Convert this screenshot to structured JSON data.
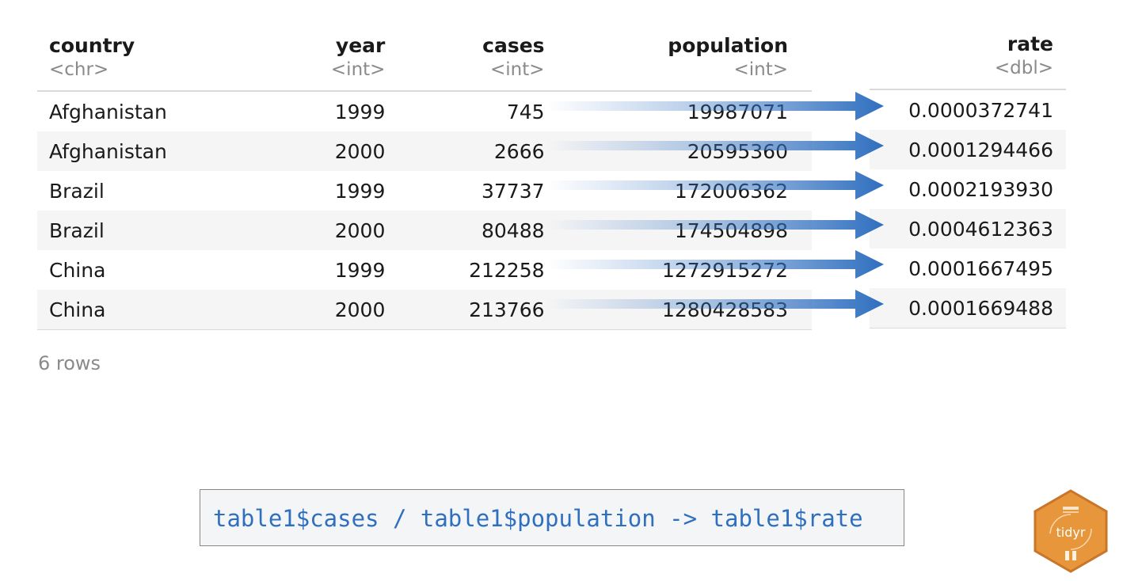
{
  "table": {
    "columns": [
      {
        "name": "country",
        "type": "<chr>"
      },
      {
        "name": "year",
        "type": "<int>"
      },
      {
        "name": "cases",
        "type": "<int>"
      },
      {
        "name": "population",
        "type": "<int>"
      }
    ],
    "rows": [
      [
        "Afghanistan",
        "1999",
        "745",
        "19987071"
      ],
      [
        "Afghanistan",
        "2000",
        "2666",
        "20595360"
      ],
      [
        "Brazil",
        "1999",
        "37737",
        "172006362"
      ],
      [
        "Brazil",
        "2000",
        "80488",
        "174504898"
      ],
      [
        "China",
        "1999",
        "212258",
        "1272915272"
      ],
      [
        "China",
        "2000",
        "213766",
        "1280428583"
      ]
    ],
    "row_count": "6 rows"
  },
  "rate_column": {
    "name": "rate",
    "type": "<dbl>",
    "values": [
      "0.0000372741",
      "0.0001294466",
      "0.0002193930",
      "0.0004612363",
      "0.0001667495",
      "0.0001669488"
    ]
  },
  "code": "table1$cases / table1$population -> table1$rate",
  "logo": {
    "label": "tidyr",
    "icon": "tidyr-hex-logo",
    "color": "#e8963b"
  },
  "colors": {
    "arrow": "#2f6fbf",
    "code_text": "#2f6fbf"
  }
}
